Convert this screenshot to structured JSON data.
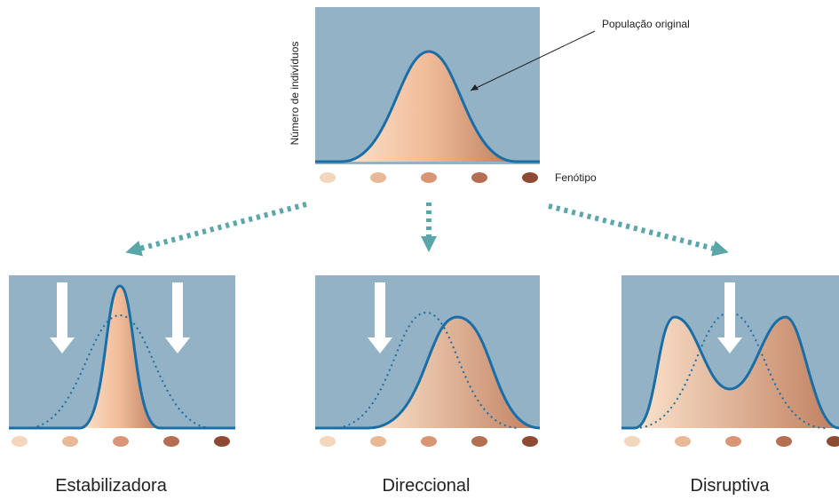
{
  "header": {
    "curve_label": "População original",
    "y_axis_label": "Número de indivíduos",
    "x_axis_label": "Fenótipo"
  },
  "panels": [
    {
      "label": "Estabilizadora"
    },
    {
      "label": "Direccional"
    },
    {
      "label": "Disruptiva"
    }
  ]
}
